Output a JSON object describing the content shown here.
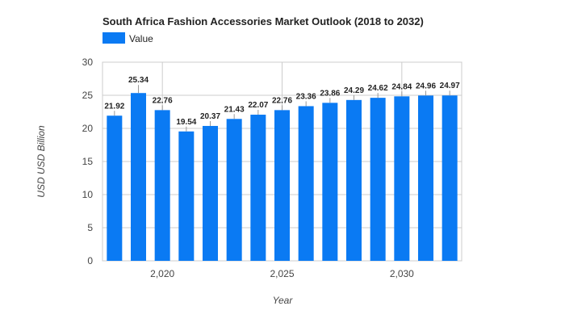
{
  "chart_data": {
    "type": "bar",
    "title": "South Africa Fashion Accessories Market Outlook (2018 to 2032)",
    "xlabel": "Year",
    "ylabel": "USD USD Billion",
    "legend": {
      "placement": "top-left",
      "entries": [
        "Value"
      ]
    },
    "grid": true,
    "ylim": [
      0,
      30
    ],
    "yticks": [
      0,
      5,
      10,
      15,
      20,
      25,
      30
    ],
    "xticks": [
      2020,
      2025,
      2030
    ],
    "xtick_labels": [
      "2,020",
      "2,025",
      "2,030"
    ],
    "x": [
      2018,
      2019,
      2020,
      2021,
      2022,
      2023,
      2024,
      2025,
      2026,
      2027,
      2028,
      2029,
      2030,
      2031,
      2032
    ],
    "series": [
      {
        "name": "Value",
        "color": "#0a7af3",
        "values": [
          21.92,
          25.34,
          22.76,
          19.54,
          20.37,
          21.43,
          22.07,
          22.76,
          23.36,
          23.86,
          24.29,
          24.62,
          24.84,
          24.96,
          24.97
        ]
      }
    ]
  }
}
